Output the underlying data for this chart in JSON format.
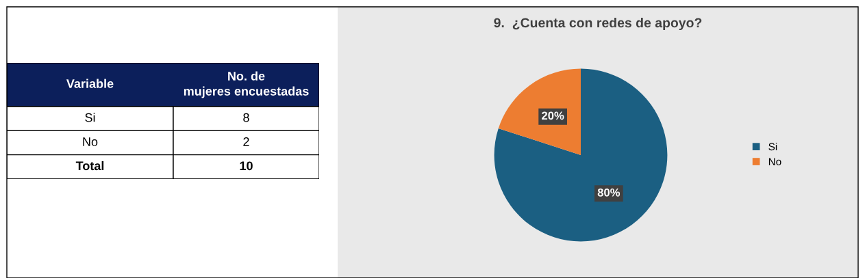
{
  "chart_data": [
    {
      "type": "other",
      "annotations": [
        "Variable",
        "No. de mujeres encuestadas"
      ],
      "categories": [
        "Si",
        "No",
        "Total"
      ],
      "values": [
        8,
        2,
        10
      ],
      "data_labels": true
    },
    {
      "type": "pie",
      "title": "9.  ¿Cuenta con redes de apoyo?",
      "categories": [
        "Si",
        "No"
      ],
      "values": [
        80,
        20
      ],
      "colors": [
        "#1b5f82",
        "#ed7d31"
      ],
      "value_labels": [
        "80%",
        "20%"
      ],
      "legend": "right"
    }
  ]
}
